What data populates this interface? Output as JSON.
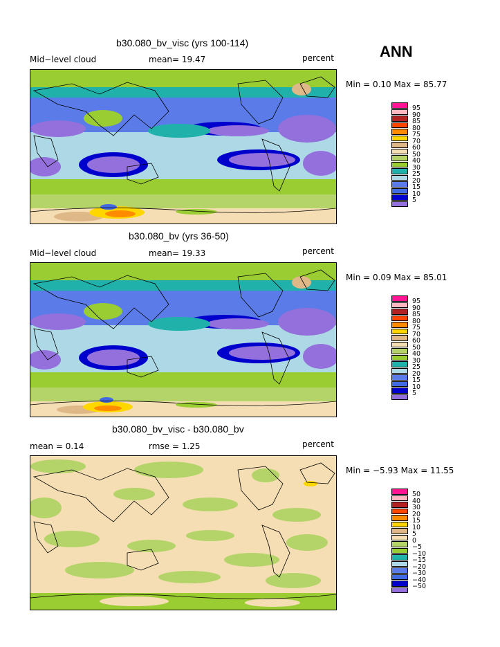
{
  "season": "ANN",
  "panels": [
    {
      "title": "b30.080_bv_visc (yrs 100-114)",
      "left_label": "Mid−level cloud",
      "center_label": "mean=  19.47",
      "unit_label": "percent",
      "minmax": "Min =   0.10 Max =  85.77",
      "legend": [
        "95",
        "90",
        "85",
        "80",
        "75",
        "70",
        "60",
        "50",
        "40",
        "30",
        "25",
        "20",
        "15",
        "10",
        "5"
      ]
    },
    {
      "title": "b30.080_bv (yrs 36-50)",
      "left_label": "Mid−level cloud",
      "center_label": "mean=  19.33",
      "unit_label": "percent",
      "minmax": "Min =   0.09 Max =  85.01",
      "legend": [
        "95",
        "90",
        "85",
        "80",
        "75",
        "70",
        "60",
        "50",
        "40",
        "30",
        "25",
        "20",
        "15",
        "10",
        "5"
      ]
    },
    {
      "title": "b30.080_bv_visc - b30.080_bv",
      "left_label": "mean =   0.14",
      "center_label": "rmse =   1.25",
      "unit_label": "percent",
      "minmax": "Min =  −5.93 Max =  11.55",
      "legend": [
        "50",
        "40",
        "30",
        "20",
        "15",
        "10",
        "5",
        "0",
        "−5",
        "−10",
        "−15",
        "−20",
        "−30",
        "−40",
        "−50"
      ]
    }
  ],
  "colors": {
    "scale": [
      "#9370DB",
      "#0000CD",
      "#4169E1",
      "#5B7BE8",
      "#ADD8E6",
      "#20B2AA",
      "#9ACD32",
      "#B4D46A",
      "#F5DEB3",
      "#DEB887",
      "#FFD700",
      "#FF8C00",
      "#FF4500",
      "#B22222",
      "#FFB6C1",
      "#FF1493"
    ]
  },
  "chart_data": [
    {
      "type": "heatmap",
      "title": "b30.080_bv_visc (yrs 100-114)",
      "variable": "Mid-level cloud",
      "units": "percent",
      "mean": 19.47,
      "min": 0.1,
      "max": 85.77,
      "contour_levels": [
        5,
        10,
        15,
        20,
        25,
        30,
        40,
        50,
        60,
        70,
        75,
        80,
        85,
        90,
        95
      ]
    },
    {
      "type": "heatmap",
      "title": "b30.080_bv (yrs 36-50)",
      "variable": "Mid-level cloud",
      "units": "percent",
      "mean": 19.33,
      "min": 0.09,
      "max": 85.01,
      "contour_levels": [
        5,
        10,
        15,
        20,
        25,
        30,
        40,
        50,
        60,
        70,
        75,
        80,
        85,
        90,
        95
      ]
    },
    {
      "type": "heatmap",
      "title": "b30.080_bv_visc - b30.080_bv",
      "units": "percent",
      "mean": 0.14,
      "rmse": 1.25,
      "min": -5.93,
      "max": 11.55,
      "contour_levels": [
        -50,
        -40,
        -30,
        -20,
        -15,
        -10,
        -5,
        0,
        5,
        10,
        15,
        20,
        30,
        40,
        50
      ]
    }
  ]
}
